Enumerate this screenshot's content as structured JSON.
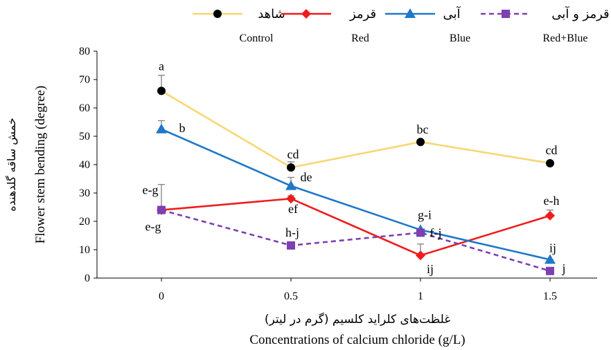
{
  "chart_data": {
    "type": "line",
    "xlabel_fa": "غلظت‌های کلراید کلسیم (گرم در لیتر)",
    "xlabel_en": "Concentrations of calcium chloride (g/L)",
    "ylabel_en": "Flower stem bending (degree)",
    "ylabel_fa": "خمش ساقه گلدهنده",
    "ylim": [
      0,
      80
    ],
    "yticks": [
      "0",
      "10",
      "20",
      "30",
      "40",
      "50",
      "60",
      "70",
      "80"
    ],
    "categories": [
      "0",
      "0.5",
      "1",
      "1.5"
    ],
    "legend_position": "top",
    "series": [
      {
        "name_fa": "شاهد",
        "name_en": "Control",
        "color": "#f9d673",
        "marker": "circle",
        "dashed": false,
        "values": [
          66,
          39,
          48,
          40.5
        ],
        "errors": [
          5.5,
          2,
          0,
          0
        ],
        "labels": [
          "a",
          "cd",
          "bc",
          "cd"
        ]
      },
      {
        "name_fa": "قرمز",
        "name_en": "Red",
        "color": "#ee1c1c",
        "marker": "diamond",
        "dashed": false,
        "values": [
          24,
          28,
          8,
          22
        ],
        "errors": [
          9,
          1,
          4,
          2
        ],
        "labels": [
          "e-g",
          "ef",
          "ij",
          "e-h"
        ]
      },
      {
        "name_fa": "آبی",
        "name_en": "Blue",
        "color": "#1f78c8",
        "marker": "triangle",
        "dashed": false,
        "values": [
          52.5,
          32.5,
          17,
          6.5
        ],
        "errors": [
          3,
          3,
          0,
          0
        ],
        "labels": [
          "b",
          "de",
          "g-i",
          "ij"
        ]
      },
      {
        "name_fa": "قرمز و آبی",
        "name_en": "Red+Blue",
        "color": "#7d3fb1",
        "marker": "square",
        "dashed": true,
        "values": [
          24,
          11.5,
          16,
          2.5
        ],
        "errors": [
          0,
          0,
          0,
          0
        ],
        "labels": [
          "e-g",
          "h-j",
          "f-j",
          "j"
        ]
      }
    ]
  }
}
